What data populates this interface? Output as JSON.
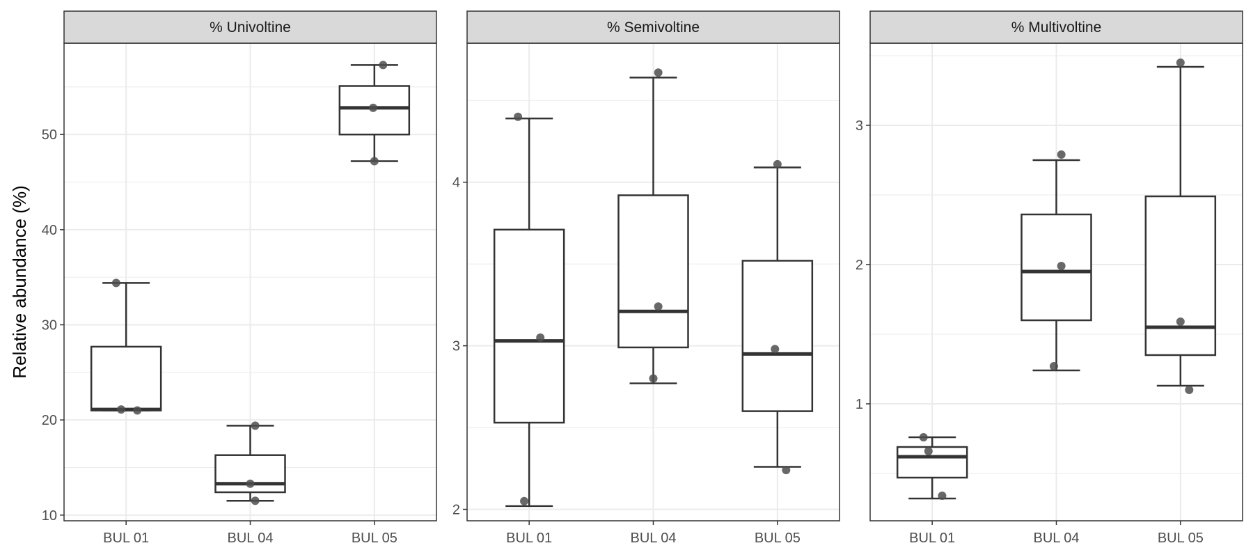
{
  "figure": {
    "ylabel": "Relative abundance (%)"
  },
  "colors": {
    "strip_fill": "#d9d9d9",
    "panel_border": "#333333",
    "grid": "#ebebeb",
    "box_line": "#333333",
    "point": "#4d4d4d"
  },
  "chart_data": [
    {
      "type": "box",
      "title": "% Univoltine",
      "xlabel": "",
      "ylabel": "Relative abundance (%)",
      "categories": [
        "BUL 01",
        "BUL 04",
        "BUL 05"
      ],
      "ylim": [
        9.4,
        59.6
      ],
      "yticks": [
        10,
        20,
        30,
        40,
        50
      ],
      "grid": true,
      "boxes": [
        {
          "category": "BUL 01",
          "lower_whisker": 21.0,
          "q1": 21.0,
          "median": 21.1,
          "q3": 27.7,
          "upper_whisker": 34.4
        },
        {
          "category": "BUL 04",
          "lower_whisker": 11.5,
          "q1": 12.4,
          "median": 13.3,
          "q3": 16.3,
          "upper_whisker": 19.4
        },
        {
          "category": "BUL 05",
          "lower_whisker": 47.2,
          "q1": 50.0,
          "median": 52.8,
          "q3": 55.1,
          "upper_whisker": 57.3
        }
      ],
      "points": [
        {
          "category": "BUL 01",
          "y": 34.4,
          "jitter": -0.08
        },
        {
          "category": "BUL 01",
          "y": 21.1,
          "jitter": -0.04
        },
        {
          "category": "BUL 01",
          "y": 21.0,
          "jitter": 0.09
        },
        {
          "category": "BUL 04",
          "y": 19.4,
          "jitter": 0.04
        },
        {
          "category": "BUL 04",
          "y": 13.3,
          "jitter": 0.0
        },
        {
          "category": "BUL 04",
          "y": 11.5,
          "jitter": 0.04
        },
        {
          "category": "BUL 05",
          "y": 57.3,
          "jitter": 0.07
        },
        {
          "category": "BUL 05",
          "y": 52.8,
          "jitter": -0.01
        },
        {
          "category": "BUL 05",
          "y": 47.2,
          "jitter": 0.0
        }
      ]
    },
    {
      "type": "box",
      "title": "% Semivoltine",
      "xlabel": "",
      "ylabel": "",
      "categories": [
        "BUL 01",
        "BUL 04",
        "BUL 05"
      ],
      "ylim": [
        1.93,
        4.85
      ],
      "yticks": [
        2,
        3,
        4
      ],
      "grid": true,
      "boxes": [
        {
          "category": "BUL 01",
          "lower_whisker": 2.02,
          "q1": 2.53,
          "median": 3.03,
          "q3": 3.71,
          "upper_whisker": 4.39
        },
        {
          "category": "BUL 04",
          "lower_whisker": 2.77,
          "q1": 2.99,
          "median": 3.21,
          "q3": 3.92,
          "upper_whisker": 4.64
        },
        {
          "category": "BUL 05",
          "lower_whisker": 2.26,
          "q1": 2.6,
          "median": 2.95,
          "q3": 3.52,
          "upper_whisker": 4.09
        }
      ],
      "points": [
        {
          "category": "BUL 01",
          "y": 4.4,
          "jitter": -0.09
        },
        {
          "category": "BUL 01",
          "y": 3.05,
          "jitter": 0.09
        },
        {
          "category": "BUL 01",
          "y": 2.05,
          "jitter": -0.04
        },
        {
          "category": "BUL 04",
          "y": 4.67,
          "jitter": 0.04
        },
        {
          "category": "BUL 04",
          "y": 3.24,
          "jitter": 0.04
        },
        {
          "category": "BUL 04",
          "y": 2.8,
          "jitter": 0.0
        },
        {
          "category": "BUL 05",
          "y": 4.11,
          "jitter": 0.0
        },
        {
          "category": "BUL 05",
          "y": 2.98,
          "jitter": -0.02
        },
        {
          "category": "BUL 05",
          "y": 2.24,
          "jitter": 0.07
        }
      ]
    },
    {
      "type": "box",
      "title": "% Multivoltine",
      "xlabel": "",
      "ylabel": "",
      "categories": [
        "BUL 01",
        "BUL 04",
        "BUL 05"
      ],
      "ylim": [
        0.16,
        3.59
      ],
      "yticks": [
        1,
        2,
        3
      ],
      "grid": true,
      "boxes": [
        {
          "category": "BUL 01",
          "lower_whisker": 0.32,
          "q1": 0.47,
          "median": 0.62,
          "q3": 0.69,
          "upper_whisker": 0.76
        },
        {
          "category": "BUL 04",
          "lower_whisker": 1.24,
          "q1": 1.6,
          "median": 1.95,
          "q3": 2.36,
          "upper_whisker": 2.75
        },
        {
          "category": "BUL 05",
          "lower_whisker": 1.13,
          "q1": 1.35,
          "median": 1.55,
          "q3": 2.49,
          "upper_whisker": 3.42
        }
      ],
      "points": [
        {
          "category": "BUL 01",
          "y": 0.76,
          "jitter": -0.07
        },
        {
          "category": "BUL 01",
          "y": 0.66,
          "jitter": -0.03
        },
        {
          "category": "BUL 01",
          "y": 0.34,
          "jitter": 0.08
        },
        {
          "category": "BUL 04",
          "y": 2.79,
          "jitter": 0.04
        },
        {
          "category": "BUL 04",
          "y": 1.99,
          "jitter": 0.04
        },
        {
          "category": "BUL 04",
          "y": 1.27,
          "jitter": -0.02
        },
        {
          "category": "BUL 05",
          "y": 3.45,
          "jitter": 0.0
        },
        {
          "category": "BUL 05",
          "y": 1.59,
          "jitter": 0.0
        },
        {
          "category": "BUL 05",
          "y": 1.1,
          "jitter": 0.07
        }
      ]
    }
  ]
}
